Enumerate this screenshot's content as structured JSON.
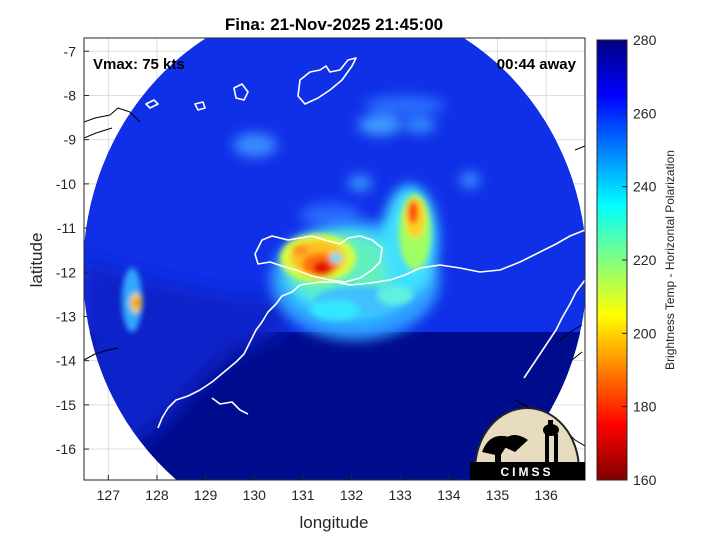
{
  "title": "Fina: 21-Nov-2025 21:45:00",
  "annotations": {
    "vmax": "Vmax: 75 kts",
    "time_away": "00:44 away"
  },
  "axes": {
    "xlabel": "longitude",
    "ylabel": "latitude",
    "xlim": [
      126.5,
      136.8
    ],
    "ylim": [
      -16.7,
      -6.7
    ],
    "xticks": [
      127,
      128,
      129,
      130,
      131,
      132,
      133,
      134,
      135,
      136
    ],
    "yticks": [
      -7,
      -8,
      -9,
      -10,
      -11,
      -12,
      -13,
      -14,
      -15,
      -16
    ],
    "grid": true
  },
  "colorbar": {
    "label": "Brightness Temp - Horizontal Polarization",
    "range": [
      160,
      280
    ],
    "ticks": [
      280,
      260,
      240,
      220,
      200,
      180,
      160
    ],
    "colormap": "jet"
  },
  "logo": {
    "text": "CIMSS"
  },
  "chart_data": {
    "type": "heatmap",
    "title": "Fina: 21-Nov-2025 21:45:00",
    "xlabel": "longitude",
    "ylabel": "latitude",
    "xlim": [
      126.5,
      136.8
    ],
    "ylim": [
      -16.7,
      -6.7
    ],
    "value_range": [
      160,
      280
    ],
    "units_label": "Brightness Temp - Horizontal Polarization",
    "swath_center": [
      131.6,
      -11.7
    ],
    "background_value": 266,
    "features": [
      {
        "name": "eyewall-core",
        "lon": 131.4,
        "lat": -11.8,
        "value": 190
      },
      {
        "name": "rainband-east",
        "lon": 133.1,
        "lat": -10.7,
        "value": 195
      },
      {
        "name": "convection-west",
        "lon": 127.6,
        "lat": -12.6,
        "value": 200
      },
      {
        "name": "ring-south",
        "lon": 132.0,
        "lat": -12.6,
        "value": 225
      },
      {
        "name": "ring-north",
        "lon": 132.2,
        "lat": -11.3,
        "value": 230
      },
      {
        "name": "clouds-north",
        "lon": 132.8,
        "lat": -8.8,
        "value": 245
      }
    ]
  }
}
